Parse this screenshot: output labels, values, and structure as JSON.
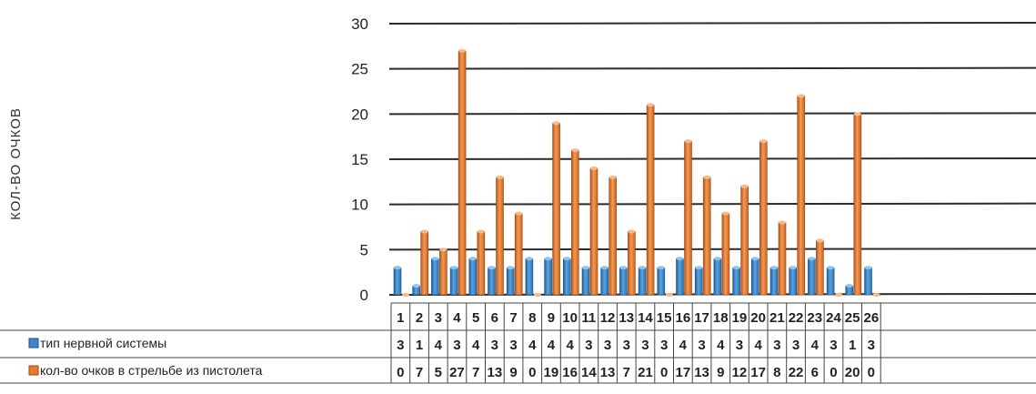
{
  "chart_data": {
    "type": "bar",
    "ylabel": "КОЛ-ВО ОЧКОВ",
    "ylim": [
      0,
      30
    ],
    "yticks": [
      "0",
      "5",
      "10",
      "15",
      "20",
      "25",
      "30"
    ],
    "grid": true,
    "legend_placement": "bottom (data table)",
    "categories": [
      "1",
      "2",
      "3",
      "4",
      "5",
      "6",
      "7",
      "8",
      "9",
      "10",
      "11",
      "12",
      "13",
      "14",
      "15",
      "16",
      "17",
      "18",
      "19",
      "20",
      "21",
      "22",
      "23",
      "24",
      "25",
      "26"
    ],
    "series": [
      {
        "name": "тип нервной системы",
        "color": "#3d86c6",
        "values": [
          3,
          1,
          4,
          3,
          4,
          3,
          3,
          4,
          4,
          4,
          3,
          3,
          3,
          3,
          3,
          4,
          3,
          4,
          3,
          4,
          3,
          3,
          4,
          3,
          1,
          3
        ]
      },
      {
        "name": "кол-во очков в стрельбе из пистолета",
        "color": "#e8792f",
        "values": [
          0,
          7,
          5,
          27,
          7,
          13,
          9,
          0,
          19,
          16,
          14,
          13,
          7,
          21,
          0,
          17,
          13,
          9,
          12,
          17,
          8,
          22,
          6,
          0,
          20,
          0
        ]
      }
    ]
  }
}
